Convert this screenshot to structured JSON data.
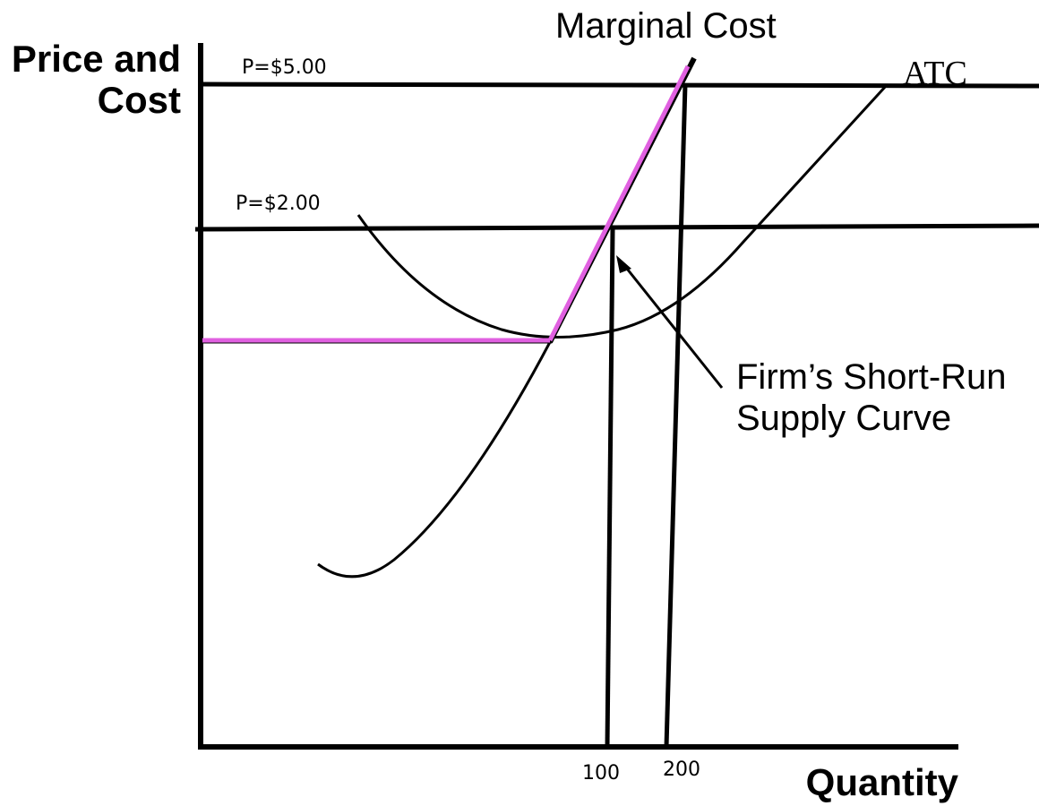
{
  "axes": {
    "y_label_line1": "Price and",
    "y_label_line2": "Cost",
    "x_label": "Quantity"
  },
  "price_lines": [
    {
      "label": "P=$5.00"
    },
    {
      "label": "P=$2.00"
    }
  ],
  "quantity_ticks": [
    {
      "label": "100"
    },
    {
      "label": "200"
    }
  ],
  "curves": {
    "mc_label": "Marginal Cost",
    "atc_label": "ATC",
    "supply_label_line1": "Firm’s Short-Run",
    "supply_label_line2": "Supply Curve"
  },
  "colors": {
    "supply_curve": "#e060e0",
    "lines": "#000000"
  }
}
